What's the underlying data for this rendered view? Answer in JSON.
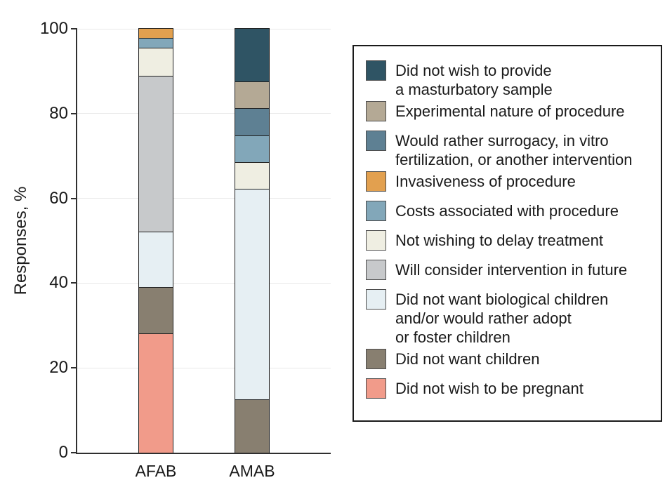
{
  "chart_data": {
    "type": "stacked_bar",
    "title": "",
    "ylabel": "Responses, %",
    "xlabel": "",
    "ylim": [
      0,
      100
    ],
    "yticks": [
      0,
      20,
      40,
      60,
      80,
      100
    ],
    "grid": "horizontal-light",
    "legend_position": "right-box",
    "categories": [
      "AFAB",
      "AMAB"
    ],
    "series": [
      {
        "name": "Did not wish to be pregnant",
        "color": "#F19B8A",
        "values": [
          28.3,
          0
        ]
      },
      {
        "name": "Did not want children",
        "color": "#887F70",
        "values": [
          10.9,
          12.5
        ]
      },
      {
        "name": "Did not want biological children and/or would rather adopt or foster children",
        "color": "#E6EFF3",
        "values": [
          13.0,
          50
        ]
      },
      {
        "name": "Will consider intervention in future",
        "color": "#C7C9CB",
        "values": [
          37.0,
          0
        ]
      },
      {
        "name": "Not wishing to delay treatment",
        "color": "#EFEEE2",
        "values": [
          6.5,
          6.25
        ]
      },
      {
        "name": "Costs associated with procedure",
        "color": "#82A7B9",
        "values": [
          2.2,
          6.25
        ]
      },
      {
        "name": "Invasiveness of procedure",
        "color": "#E2A04F",
        "values": [
          2.2,
          0
        ]
      },
      {
        "name": "Would rather surrogacy, in vitro fertilization, or another intervention",
        "color": "#5E8093",
        "values": [
          0,
          6.25
        ]
      },
      {
        "name": "Experimental nature of procedure",
        "color": "#B4A995",
        "values": [
          0,
          6.25
        ]
      },
      {
        "name": "Did not wish to provide a masturbatory sample",
        "color": "#2F5464",
        "values": [
          0,
          12.5
        ]
      }
    ],
    "legend_items": [
      {
        "color": "#2F5464",
        "lines": [
          "Did not wish to provide",
          "a masturbatory sample"
        ]
      },
      {
        "color": "#B4A995",
        "lines": [
          "Experimental nature of procedure"
        ]
      },
      {
        "color": "#5E8093",
        "lines": [
          "Would rather surrogacy, in vitro",
          "fertilization, or another intervention"
        ]
      },
      {
        "color": "#E2A04F",
        "lines": [
          "Invasiveness of procedure"
        ]
      },
      {
        "color": "#82A7B9",
        "lines": [
          "Costs associated with procedure"
        ]
      },
      {
        "color": "#EFEEE2",
        "lines": [
          "Not wishing to delay treatment"
        ]
      },
      {
        "color": "#C7C9CB",
        "lines": [
          "Will consider intervention in future"
        ]
      },
      {
        "color": "#E6EFF3",
        "lines": [
          "Did not want biological children",
          "and/or would rather adopt",
          "or foster children"
        ]
      },
      {
        "color": "#887F70",
        "lines": [
          "Did not want children"
        ]
      },
      {
        "color": "#F19B8A",
        "lines": [
          "Did not wish to be pregnant"
        ]
      }
    ]
  }
}
